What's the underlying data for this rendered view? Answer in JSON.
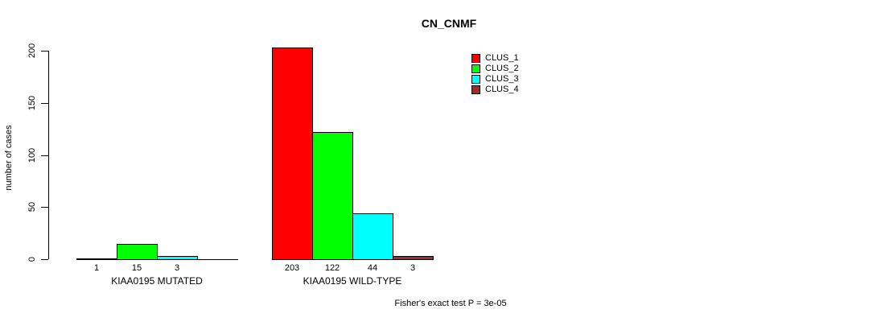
{
  "chart_data": {
    "type": "bar",
    "title": "CN_CNMF",
    "ylabel": "number of cases",
    "xlabel": "",
    "ylim": [
      0,
      200
    ],
    "yticks": [
      0,
      50,
      100,
      150,
      200
    ],
    "grid": false,
    "legend_position": "top-right",
    "categories": [
      "KIAA0195 MUTATED",
      "KIAA0195 WILD-TYPE"
    ],
    "series": [
      {
        "name": "CLUS_1",
        "color": "#FF0000",
        "values": [
          1,
          203
        ]
      },
      {
        "name": "CLUS_2",
        "color": "#00FF00",
        "values": [
          15,
          122
        ]
      },
      {
        "name": "CLUS_3",
        "color": "#00FFFF",
        "values": [
          3,
          44
        ]
      },
      {
        "name": "CLUS_4",
        "color": "#A52A2A",
        "values": [
          0,
          3
        ]
      }
    ],
    "bar_value_labels": [
      [
        "1",
        "15",
        "3",
        ""
      ],
      [
        "203",
        "122",
        "44",
        "3"
      ]
    ],
    "footnote": "Fisher's exact test P = 3e-05"
  }
}
